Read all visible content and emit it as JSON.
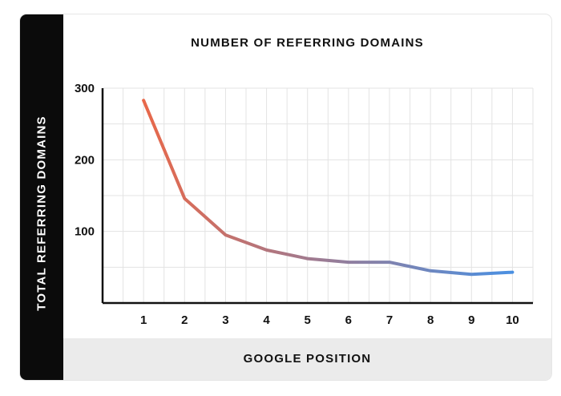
{
  "chart_data": {
    "type": "line",
    "title": "NUMBER OF REFERRING DOMAINS",
    "xlabel": "GOOGLE POSITION",
    "ylabel": "TOTAL REFERRING DOMAINS",
    "x": [
      1,
      2,
      3,
      4,
      5,
      6,
      7,
      8,
      9,
      10
    ],
    "series": [
      {
        "values": [
          283,
          146,
          95,
          74,
          62,
          57,
          57,
          45,
          40,
          43
        ]
      }
    ],
    "xlim": [
      0,
      10.5
    ],
    "ylim": [
      0,
      300
    ],
    "yticks": [
      100,
      200,
      300
    ],
    "xticks": [
      "1",
      "2",
      "3",
      "4",
      "5",
      "6",
      "7",
      "8",
      "9",
      "10"
    ],
    "grid": true,
    "line_gradient": [
      "#e8684a",
      "#4a90e2"
    ]
  }
}
